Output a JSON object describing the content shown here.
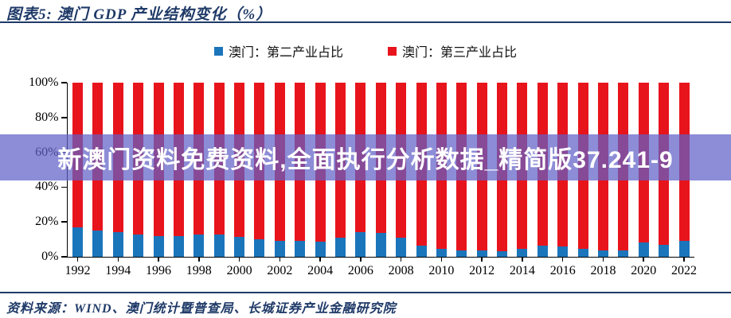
{
  "header": {
    "title": "图表5: 澳门 GDP 产业结构变化（%）"
  },
  "legend": {
    "items": [
      {
        "label": "澳门：第二产业占比",
        "color": "#1b75bb"
      },
      {
        "label": "澳门：第三产业占比",
        "color": "#e8141c"
      }
    ]
  },
  "watermark": {
    "text": "新澳门资料免费资料,全面执行分析数据_精简版37.241-9",
    "band_color": "rgba(95,95,200,0.72)",
    "text_color": "#ffffff"
  },
  "footer": {
    "source": "资料来源：WIND、澳门统计暨普查局、长城证券产业金融研究院"
  },
  "chart_data": {
    "type": "bar",
    "stacked": true,
    "title": "澳门 GDP 产业结构变化（%）",
    "x": [
      1992,
      1993,
      1994,
      1995,
      1996,
      1997,
      1998,
      1999,
      2000,
      2001,
      2002,
      2003,
      2004,
      2005,
      2006,
      2007,
      2008,
      2009,
      2010,
      2011,
      2012,
      2013,
      2014,
      2015,
      2016,
      2017,
      2018,
      2019,
      2020,
      2021,
      2022
    ],
    "series": [
      {
        "name": "澳门：第二产业占比",
        "color": "#1b75bb",
        "values": [
          17,
          15,
          14,
          13,
          12,
          12,
          13,
          13,
          11.5,
          10,
          9,
          9,
          8.5,
          11,
          14,
          13.5,
          11,
          6.5,
          4.5,
          3.5,
          3.5,
          3,
          4.5,
          6.5,
          6,
          4.5,
          3.5,
          3.5,
          8,
          7,
          9
        ]
      },
      {
        "name": "澳门：第三产业占比",
        "color": "#e8141c",
        "values": [
          83,
          85,
          86,
          87,
          88,
          88,
          87,
          87,
          88.5,
          90,
          91,
          91,
          91.5,
          89,
          86,
          86.5,
          89,
          93.5,
          95.5,
          96.5,
          96.5,
          97,
          95.5,
          93.5,
          94,
          95.5,
          96.5,
          96.5,
          92,
          93,
          91
        ]
      }
    ],
    "ylim": [
      0,
      100
    ],
    "ytick_values": [
      0,
      20,
      40,
      60,
      80,
      100
    ],
    "ytick_labels": [
      "0%",
      "20%",
      "40%",
      "60%",
      "80%",
      "100%"
    ],
    "xtick_years": [
      1992,
      1994,
      1996,
      1998,
      2000,
      2002,
      2004,
      2006,
      2008,
      2010,
      2012,
      2014,
      2016,
      2018,
      2020,
      2022
    ],
    "grid": false,
    "legend_position": "top-center"
  }
}
